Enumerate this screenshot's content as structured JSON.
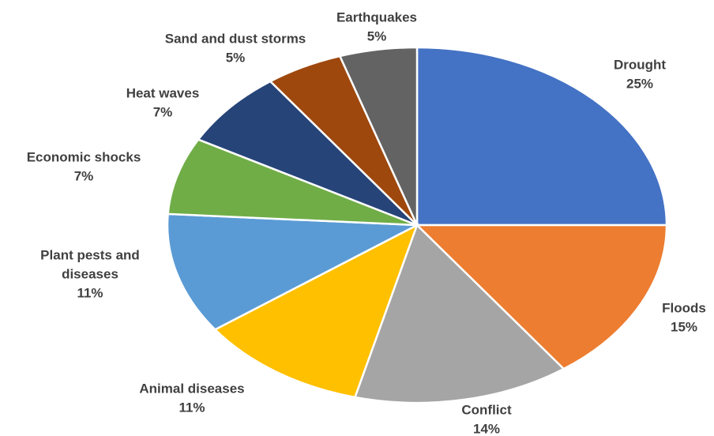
{
  "chart_data": {
    "type": "pie",
    "title": "",
    "slices": [
      {
        "label": [
          "Drought"
        ],
        "value": 25,
        "value_label": "25%",
        "color": "#4472C4"
      },
      {
        "label": [
          "Floods"
        ],
        "value": 15,
        "value_label": "15%",
        "color": "#ED7D31"
      },
      {
        "label": [
          "Conflict"
        ],
        "value": 14,
        "value_label": "14%",
        "color": "#A5A5A5"
      },
      {
        "label": [
          "Animal diseases"
        ],
        "value": 11,
        "value_label": "11%",
        "color": "#FFC000"
      },
      {
        "label": [
          "Plant pests and",
          "diseases"
        ],
        "value": 11,
        "value_label": "11%",
        "color": "#5B9BD5"
      },
      {
        "label": [
          "Economic shocks"
        ],
        "value": 7,
        "value_label": "7%",
        "color": "#70AD47"
      },
      {
        "label": [
          "Heat waves"
        ],
        "value": 7,
        "value_label": "7%",
        "color": "#264478"
      },
      {
        "label": [
          "Sand and dust storms"
        ],
        "value": 5,
        "value_label": "5%",
        "color": "#9E480E"
      },
      {
        "label": [
          "Earthquakes"
        ],
        "value": 5,
        "value_label": "5%",
        "color": "#636363"
      }
    ]
  }
}
